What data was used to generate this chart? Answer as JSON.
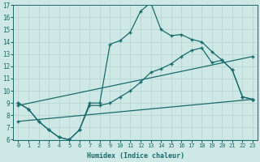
{
  "xlabel": "Humidex (Indice chaleur)",
  "bg_color": "#cde8e5",
  "line_color": "#1a6b6b",
  "grid_color": "#b8d8d5",
  "xlim": [
    -0.5,
    23.5
  ],
  "ylim": [
    6,
    17
  ],
  "xticks": [
    0,
    1,
    2,
    3,
    4,
    5,
    6,
    7,
    8,
    9,
    10,
    11,
    12,
    13,
    14,
    15,
    16,
    17,
    18,
    19,
    20,
    21,
    22,
    23
  ],
  "yticks": [
    6,
    7,
    8,
    9,
    10,
    11,
    12,
    13,
    14,
    15,
    16,
    17
  ],
  "line1_x": [
    0,
    1,
    2,
    3,
    4,
    5,
    6,
    7,
    8,
    9,
    10,
    11,
    12,
    13,
    14,
    15,
    16,
    17,
    18,
    19,
    20,
    21,
    22,
    23
  ],
  "line1_y": [
    9.0,
    8.5,
    7.5,
    6.8,
    6.2,
    6.0,
    6.8,
    9.0,
    9.0,
    13.8,
    14.1,
    14.8,
    16.5,
    17.2,
    15.0,
    14.5,
    14.6,
    14.2,
    14.0,
    13.2,
    12.5,
    11.7,
    9.5,
    9.3
  ],
  "line2_x": [
    0,
    1,
    2,
    3,
    4,
    5,
    6,
    7,
    8,
    9,
    10,
    11,
    12,
    13,
    14,
    15,
    16,
    17,
    18,
    19,
    20,
    21,
    22,
    23
  ],
  "line2_y": [
    9.0,
    8.5,
    7.5,
    6.8,
    6.2,
    6.0,
    6.8,
    8.8,
    8.8,
    9.0,
    9.5,
    10.0,
    10.7,
    11.5,
    11.8,
    12.2,
    12.8,
    13.3,
    13.5,
    12.3,
    12.5,
    11.7,
    9.5,
    9.3
  ],
  "line3_x": [
    0,
    23
  ],
  "line3_y": [
    8.8,
    12.8
  ],
  "line4_x": [
    0,
    23
  ],
  "line4_y": [
    7.5,
    9.3
  ]
}
